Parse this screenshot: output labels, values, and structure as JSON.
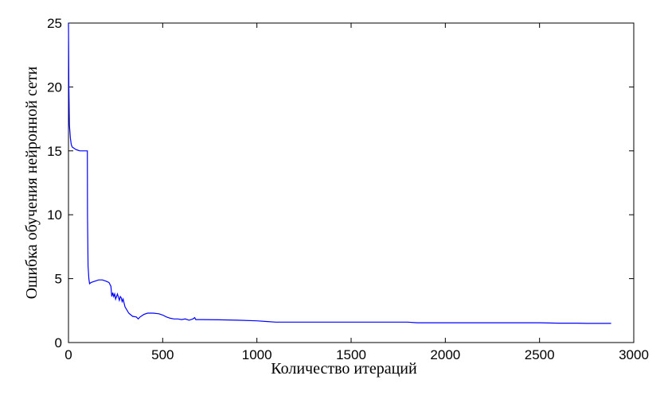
{
  "chart_data": {
    "type": "line",
    "title": "",
    "xlabel": "Количество итераций",
    "ylabel": "Ошибка обучения нейронной сети",
    "xlim": [
      0,
      3000
    ],
    "ylim": [
      0,
      25
    ],
    "xticks": [
      0,
      500,
      1000,
      1500,
      2000,
      2500,
      3000
    ],
    "yticks": [
      0,
      5,
      10,
      15,
      20,
      25
    ],
    "grid": false,
    "line_color": "#0000ff",
    "series": [
      {
        "x": [
          0,
          2,
          5,
          10,
          15,
          20,
          30,
          40,
          50,
          60,
          70,
          80,
          90,
          100,
          101,
          104,
          108,
          112,
          120,
          140,
          160,
          180,
          200,
          215,
          225,
          230,
          235,
          240,
          245,
          250,
          260,
          270,
          275,
          280,
          285,
          290,
          300,
          320,
          340,
          360,
          370,
          380,
          390,
          400,
          420,
          450,
          480,
          500,
          520,
          540,
          560,
          580,
          600,
          620,
          640,
          660,
          670,
          675,
          680,
          690,
          700,
          800,
          900,
          1000,
          1050,
          1100,
          1200,
          1300,
          1400,
          1500,
          1600,
          1700,
          1800,
          1850,
          1900,
          2000,
          2100,
          2200,
          2300,
          2400,
          2500,
          2600,
          2700,
          2750,
          2800,
          2880
        ],
        "y": [
          25,
          20,
          17,
          16,
          15.5,
          15.3,
          15.2,
          15.1,
          15.05,
          15,
          15,
          15,
          15,
          15,
          10,
          6,
          5,
          4.6,
          4.7,
          4.8,
          4.9,
          4.9,
          4.8,
          4.7,
          4.4,
          3.6,
          3.9,
          3.6,
          3.8,
          3.4,
          3.8,
          3.3,
          3.6,
          3.5,
          3.2,
          3.4,
          2.8,
          2.3,
          2.05,
          2.0,
          1.85,
          2.0,
          2.1,
          2.2,
          2.3,
          2.3,
          2.25,
          2.15,
          2.0,
          1.9,
          1.85,
          1.85,
          1.8,
          1.85,
          1.75,
          1.85,
          1.95,
          1.8,
          1.8,
          1.8,
          1.8,
          1.78,
          1.75,
          1.7,
          1.65,
          1.6,
          1.6,
          1.6,
          1.6,
          1.6,
          1.6,
          1.6,
          1.6,
          1.55,
          1.55,
          1.55,
          1.55,
          1.55,
          1.55,
          1.55,
          1.55,
          1.52,
          1.52,
          1.5,
          1.5,
          1.5
        ]
      }
    ]
  }
}
